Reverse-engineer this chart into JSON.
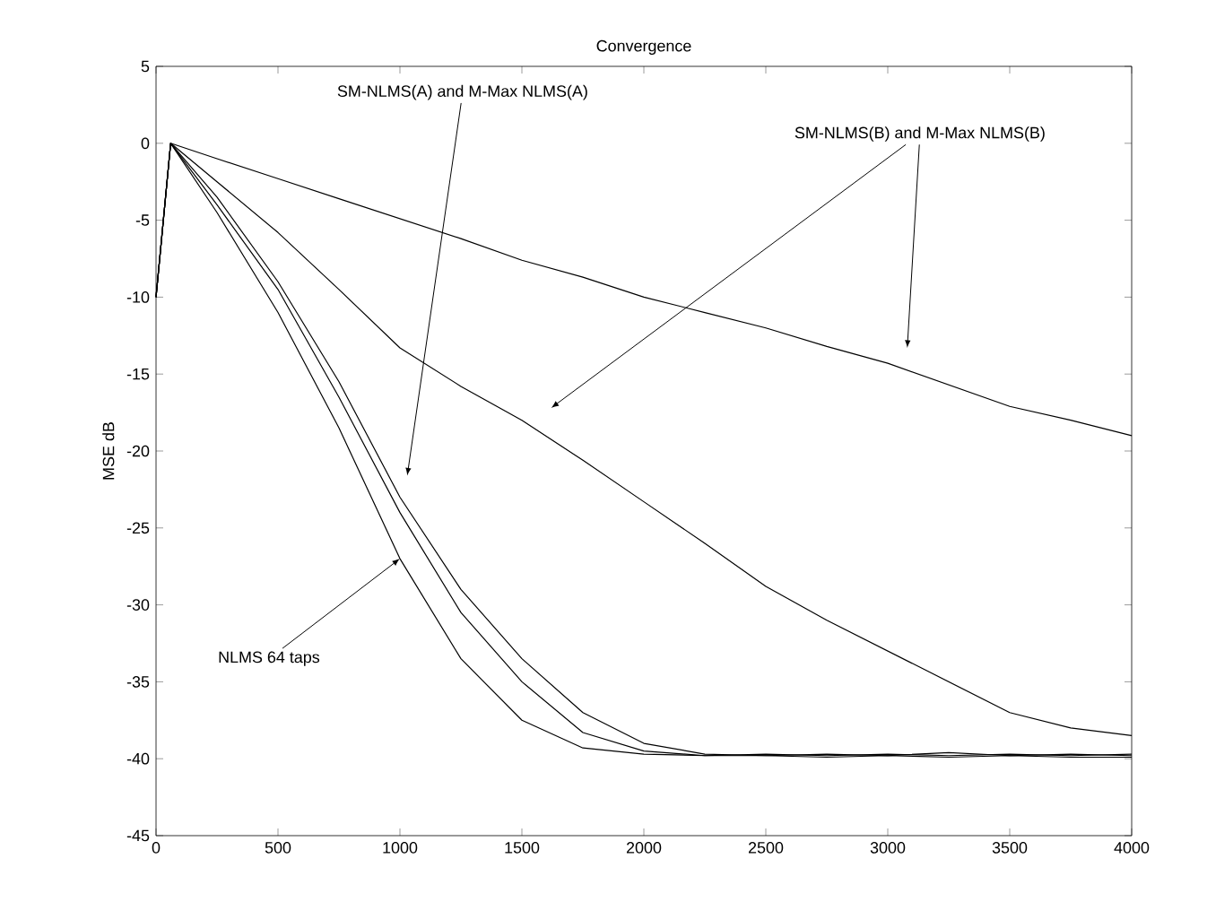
{
  "chart_data": {
    "type": "line",
    "title": "Convergence",
    "ylabel": "MSE dB",
    "x": [
      0,
      60,
      250,
      500,
      750,
      1000,
      1250,
      1500,
      1750,
      2000,
      2250,
      2500,
      2750,
      3000,
      3250,
      3500,
      3750,
      4000
    ],
    "series": [
      {
        "color": "#000000",
        "values": [
          -10,
          0,
          -1,
          -2.3,
          -3.6,
          -4.9,
          -6.2,
          -7.6,
          -8.7,
          -10,
          -11,
          -12,
          -13.2,
          -14.3,
          -15.7,
          -17.1,
          -18,
          -19
        ]
      },
      {
        "color": "#000000",
        "values": [
          -10,
          0,
          -2.5,
          -5.8,
          -9.5,
          -13.3,
          -15.8,
          -18,
          -20.6,
          -23.3,
          -26,
          -28.8,
          -31,
          -33,
          -35,
          -37,
          -38,
          -38.5
        ]
      },
      {
        "color": "#000000",
        "values": [
          -10,
          0,
          -3.5,
          -9,
          -15.5,
          -23,
          -29,
          -33.5,
          -37,
          -39,
          -39.7,
          -39.8,
          -39.7,
          -39.8,
          -39.6,
          -39.8,
          -39.7,
          -39.8
        ]
      },
      {
        "color": "#000000",
        "values": [
          -10,
          0,
          -4,
          -9.5,
          -16.5,
          -24,
          -30.5,
          -35,
          -38.3,
          -39.5,
          -39.8,
          -39.7,
          -39.8,
          -39.7,
          -39.8,
          -39.7,
          -39.8,
          -39.7
        ]
      },
      {
        "color": "#000000",
        "values": [
          -10,
          0,
          -4.5,
          -11,
          -18.5,
          -27,
          -33.5,
          -37.5,
          -39.3,
          -39.7,
          -39.8,
          -39.8,
          -39.9,
          -39.8,
          -39.9,
          -39.8,
          -39.9,
          -39.9
        ]
      }
    ],
    "xlim": [
      0,
      4000
    ],
    "ylim": [
      -45,
      5
    ],
    "xticks": [
      0,
      500,
      1000,
      1500,
      2000,
      2500,
      3000,
      3500,
      4000
    ],
    "yticks": [
      -45,
      -40,
      -35,
      -30,
      -25,
      -20,
      -15,
      -10,
      -5,
      0,
      5
    ],
    "annotations": [
      "SM-NLMS(A) and M-Max NLMS(A)",
      "SM-NLMS(B) and M-Max NLMS(B)",
      {
        "text": "NLMS 64 taps",
        "x": 1000,
        "y": -27
      }
    ]
  }
}
